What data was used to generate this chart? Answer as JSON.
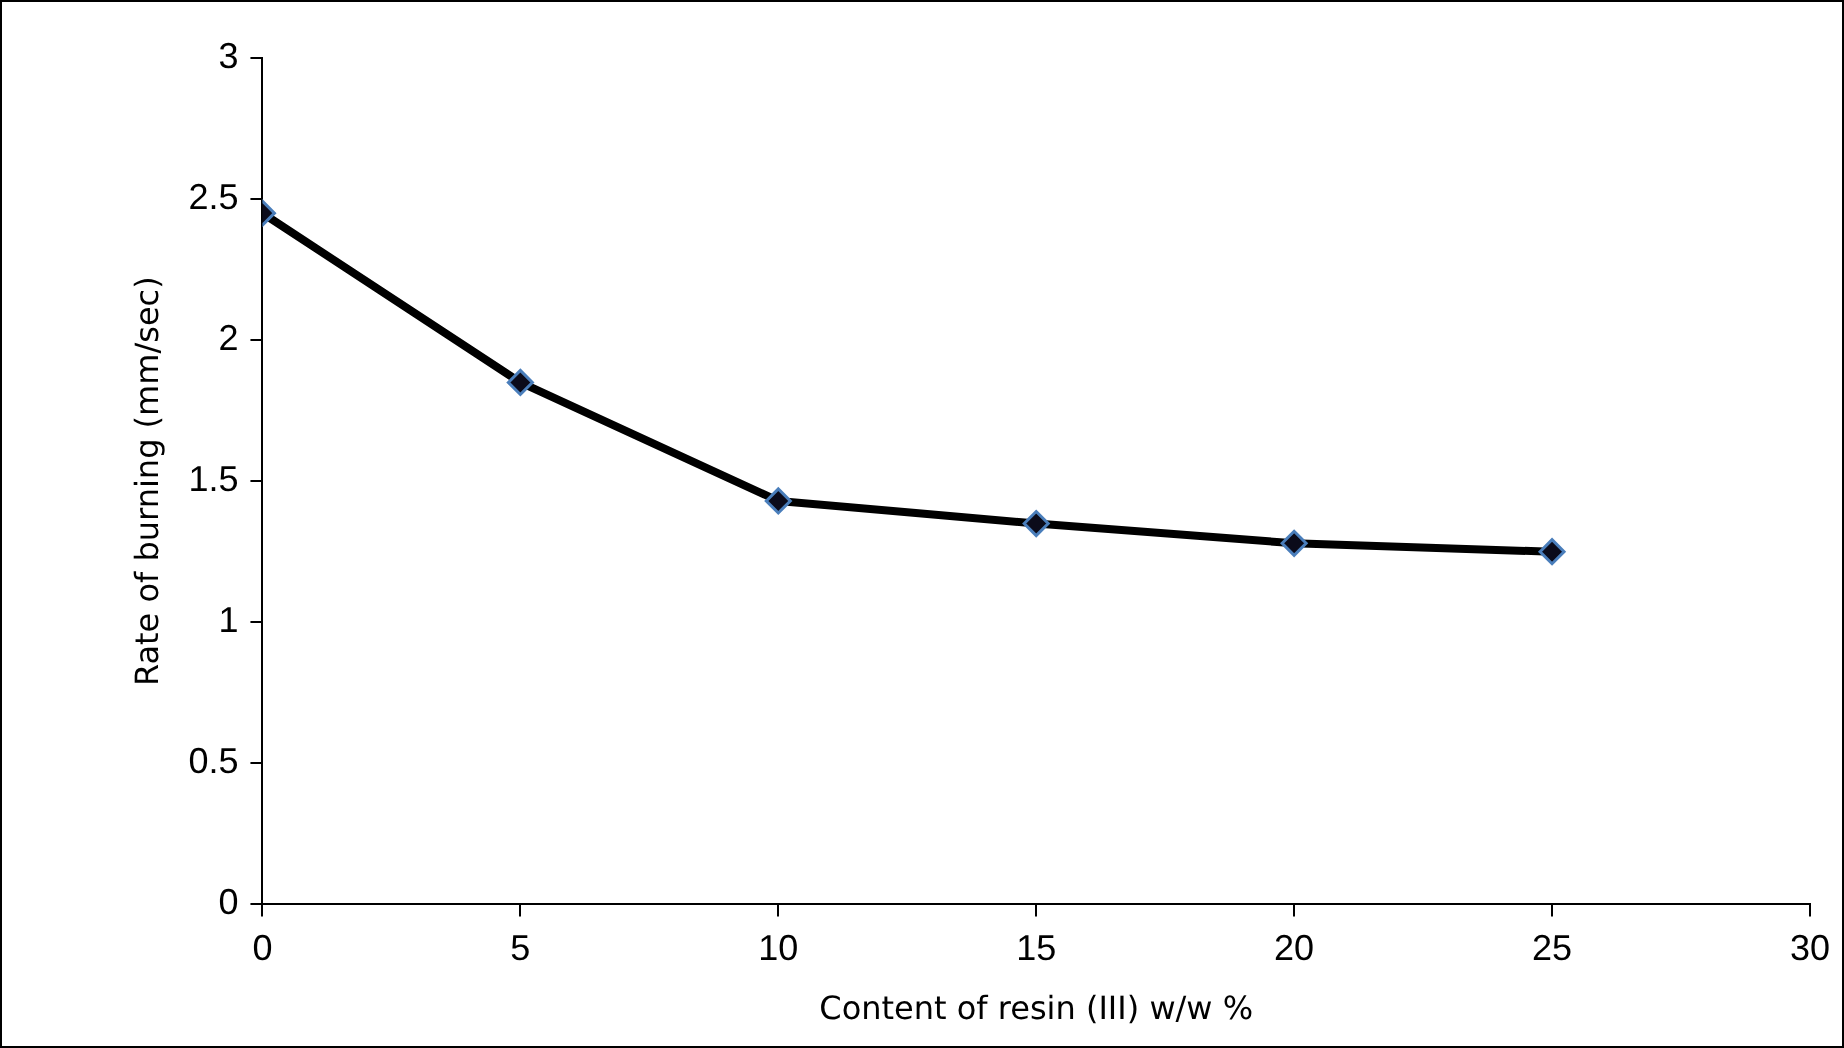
{
  "chart_data": {
    "type": "line",
    "xlabel": "Content of resin (III) w/w %",
    "ylabel": "Rate of burning (mm/sec)",
    "x": [
      0,
      5,
      10,
      15,
      20,
      25
    ],
    "series": [
      {
        "color": "#000000",
        "values": [
          2.45,
          1.85,
          1.43,
          1.35,
          1.28,
          1.25
        ]
      }
    ],
    "xlim": [
      0,
      30
    ],
    "xticks": [
      0,
      5,
      10,
      15,
      20,
      25,
      30
    ],
    "ylim": [
      0,
      3
    ],
    "yticks": [
      0,
      0.5,
      1,
      1.5,
      2,
      2.5,
      3
    ],
    "grid": false,
    "legend": false,
    "marker": "diamond",
    "line_style": "solid"
  }
}
